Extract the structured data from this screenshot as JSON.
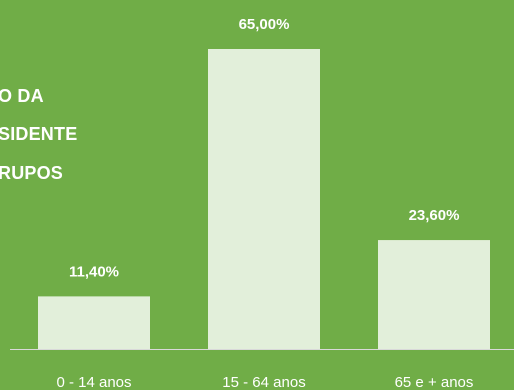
{
  "chart_data": {
    "type": "bar",
    "title_lines": [
      "O DA",
      "SIDENTE",
      "RUPOS"
    ],
    "categories": [
      "0 - 14 anos",
      "15 - 64 anos",
      "65 e + anos"
    ],
    "values": [
      11.4,
      65.0,
      23.6
    ],
    "data_labels": [
      "11,40%",
      "65,00%",
      "23,60%"
    ],
    "ylim": [
      0,
      65
    ],
    "grid": false,
    "legend": "none",
    "bar_color": "#e2efda",
    "background_color": "#70ad47",
    "axis_color": "#d9d9d9"
  }
}
